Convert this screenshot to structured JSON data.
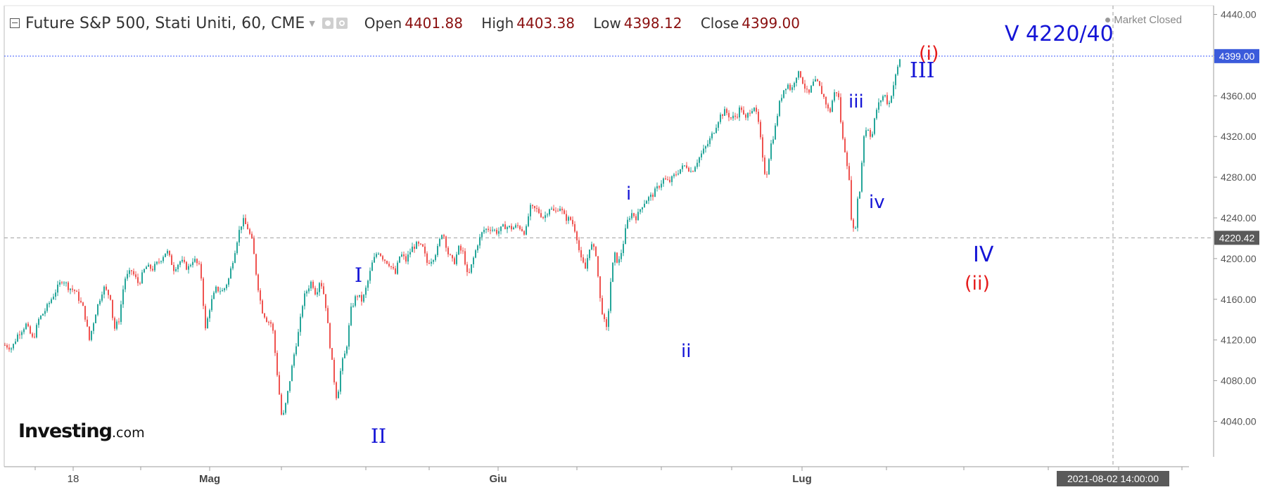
{
  "header": {
    "title": "Future S&P 500, Stati Uniti, 60, CME",
    "open_label": "Open",
    "open_value": "4401.88",
    "high_label": "High",
    "high_value": "4403.38",
    "low_label": "Low",
    "low_value": "4398.12",
    "close_label": "Close",
    "close_value": "4399.00",
    "status": "Market Closed"
  },
  "logo": {
    "brand": "Investing",
    "suffix": ".com"
  },
  "colors": {
    "up": "#26a69a",
    "down": "#ef5350",
    "wave_blue": "#1414d6",
    "wave_red": "#e51b1b",
    "last_price_line": "#3d5afe",
    "cursor_line": "#9e9e9e"
  },
  "annotations": {
    "I": "I",
    "II": "II",
    "i": "i",
    "ii": "ii",
    "iii": "iii",
    "iv": "iv",
    "III": "III",
    "p_i": "(i)",
    "IV": "IV",
    "p_ii": "(ii)",
    "V_target": "V 4220/40"
  },
  "chart_data": {
    "type": "candlestick",
    "interval": "60",
    "x_tick_labels": [
      "18",
      "Mag",
      "Giu",
      "Lug"
    ],
    "y_ticks": [
      4040,
      4080,
      4120,
      4160,
      4200,
      4240,
      4280,
      4320,
      4360,
      4400,
      4440
    ],
    "ylim": [
      4010,
      4450
    ],
    "last_price": 4399.0,
    "last_price_label": "4399.00",
    "cursor_price": 4220.42,
    "cursor_price_label": "4220.42",
    "cursor_time_label": "2021-08-02 14:00:00",
    "series": [
      {
        "values": [
          [
            0,
            4115
          ],
          [
            10,
            4112
          ],
          [
            18,
            4125
          ],
          [
            30,
            4135
          ],
          [
            40,
            4120
          ],
          [
            48,
            4140
          ],
          [
            58,
            4150
          ],
          [
            72,
            4168
          ],
          [
            82,
            4180
          ],
          [
            90,
            4172
          ],
          [
            100,
            4168
          ],
          [
            112,
            4150
          ],
          [
            120,
            4120
          ],
          [
            130,
            4150
          ],
          [
            140,
            4172
          ],
          [
            150,
            4162
          ],
          [
            155,
            4130
          ],
          [
            162,
            4140
          ],
          [
            170,
            4180
          ],
          [
            180,
            4188
          ],
          [
            190,
            4175
          ],
          [
            200,
            4192
          ],
          [
            210,
            4190
          ],
          [
            220,
            4198
          ],
          [
            230,
            4208
          ],
          [
            240,
            4190
          ],
          [
            250,
            4198
          ],
          [
            260,
            4190
          ],
          [
            268,
            4200
          ],
          [
            278,
            4190
          ],
          [
            285,
            4130
          ],
          [
            292,
            4155
          ],
          [
            300,
            4170
          ],
          [
            310,
            4168
          ],
          [
            318,
            4180
          ],
          [
            326,
            4205
          ],
          [
            332,
            4225
          ],
          [
            338,
            4238
          ],
          [
            345,
            4230
          ],
          [
            352,
            4215
          ],
          [
            358,
            4180
          ],
          [
            365,
            4150
          ],
          [
            372,
            4140
          ],
          [
            380,
            4135
          ],
          [
            388,
            4080
          ],
          [
            394,
            4040
          ],
          [
            400,
            4060
          ],
          [
            406,
            4085
          ],
          [
            412,
            4110
          ],
          [
            418,
            4130
          ],
          [
            424,
            4160
          ],
          [
            430,
            4170
          ],
          [
            436,
            4178
          ],
          [
            442,
            4165
          ],
          [
            448,
            4180
          ],
          [
            455,
            4160
          ],
          [
            462,
            4115
          ],
          [
            468,
            4080
          ],
          [
            472,
            4060
          ],
          [
            478,
            4095
          ],
          [
            485,
            4110
          ],
          [
            492,
            4150
          ],
          [
            500,
            4165
          ],
          [
            508,
            4158
          ],
          [
            515,
            4175
          ],
          [
            522,
            4195
          ],
          [
            530,
            4208
          ],
          [
            538,
            4200
          ],
          [
            546,
            4195
          ],
          [
            555,
            4185
          ],
          [
            562,
            4205
          ],
          [
            570,
            4198
          ],
          [
            578,
            4210
          ],
          [
            586,
            4214
          ],
          [
            594,
            4210
          ],
          [
            600,
            4196
          ],
          [
            608,
            4200
          ],
          [
            615,
            4210
          ],
          [
            622,
            4228
          ],
          [
            630,
            4205
          ],
          [
            638,
            4195
          ],
          [
            645,
            4210
          ],
          [
            652,
            4205
          ],
          [
            658,
            4180
          ],
          [
            665,
            4198
          ],
          [
            672,
            4215
          ],
          [
            680,
            4228
          ],
          [
            690,
            4230
          ],
          [
            700,
            4226
          ],
          [
            710,
            4232
          ],
          [
            720,
            4230
          ],
          [
            730,
            4232
          ],
          [
            740,
            4225
          ],
          [
            746,
            4250
          ],
          [
            756,
            4248
          ],
          [
            766,
            4240
          ],
          [
            774,
            4250
          ],
          [
            782,
            4245
          ],
          [
            788,
            4252
          ],
          [
            796,
            4240
          ],
          [
            805,
            4238
          ],
          [
            812,
            4225
          ],
          [
            818,
            4200
          ],
          [
            825,
            4190
          ],
          [
            832,
            4215
          ],
          [
            840,
            4205
          ],
          [
            846,
            4160
          ],
          [
            851,
            4140
          ],
          [
            856,
            4128
          ],
          [
            860,
            4172
          ],
          [
            866,
            4205
          ],
          [
            872,
            4195
          ],
          [
            878,
            4212
          ],
          [
            884,
            4235
          ],
          [
            890,
            4245
          ],
          [
            898,
            4240
          ],
          [
            905,
            4252
          ],
          [
            912,
            4258
          ],
          [
            920,
            4262
          ],
          [
            928,
            4270
          ],
          [
            936,
            4278
          ],
          [
            944,
            4275
          ],
          [
            952,
            4282
          ],
          [
            960,
            4288
          ],
          [
            968,
            4292
          ],
          [
            976,
            4285
          ],
          [
            984,
            4296
          ],
          [
            992,
            4305
          ],
          [
            1000,
            4314
          ],
          [
            1008,
            4326
          ],
          [
            1016,
            4340
          ],
          [
            1024,
            4345
          ],
          [
            1032,
            4338
          ],
          [
            1040,
            4340
          ],
          [
            1046,
            4350
          ],
          [
            1052,
            4335
          ],
          [
            1058,
            4345
          ],
          [
            1065,
            4350
          ],
          [
            1072,
            4330
          ],
          [
            1078,
            4290
          ],
          [
            1082,
            4280
          ],
          [
            1088,
            4310
          ],
          [
            1094,
            4325
          ],
          [
            1100,
            4350
          ],
          [
            1106,
            4365
          ],
          [
            1112,
            4372
          ],
          [
            1118,
            4365
          ],
          [
            1124,
            4380
          ],
          [
            1130,
            4382
          ],
          [
            1136,
            4370
          ],
          [
            1142,
            4360
          ],
          [
            1148,
            4372
          ],
          [
            1154,
            4374
          ],
          [
            1160,
            4365
          ],
          [
            1166,
            4355
          ],
          [
            1172,
            4342
          ],
          [
            1178,
            4362
          ],
          [
            1184,
            4365
          ],
          [
            1190,
            4320
          ],
          [
            1196,
            4300
          ],
          [
            1200,
            4275
          ],
          [
            1204,
            4230
          ],
          [
            1208,
            4225
          ],
          [
            1212,
            4258
          ],
          [
            1216,
            4270
          ],
          [
            1220,
            4320
          ],
          [
            1226,
            4330
          ],
          [
            1232,
            4318
          ],
          [
            1238,
            4345
          ],
          [
            1244,
            4355
          ],
          [
            1250,
            4362
          ],
          [
            1256,
            4350
          ],
          [
            1262,
            4368
          ],
          [
            1268,
            4385
          ],
          [
            1274,
            4402
          ]
        ]
      }
    ]
  }
}
